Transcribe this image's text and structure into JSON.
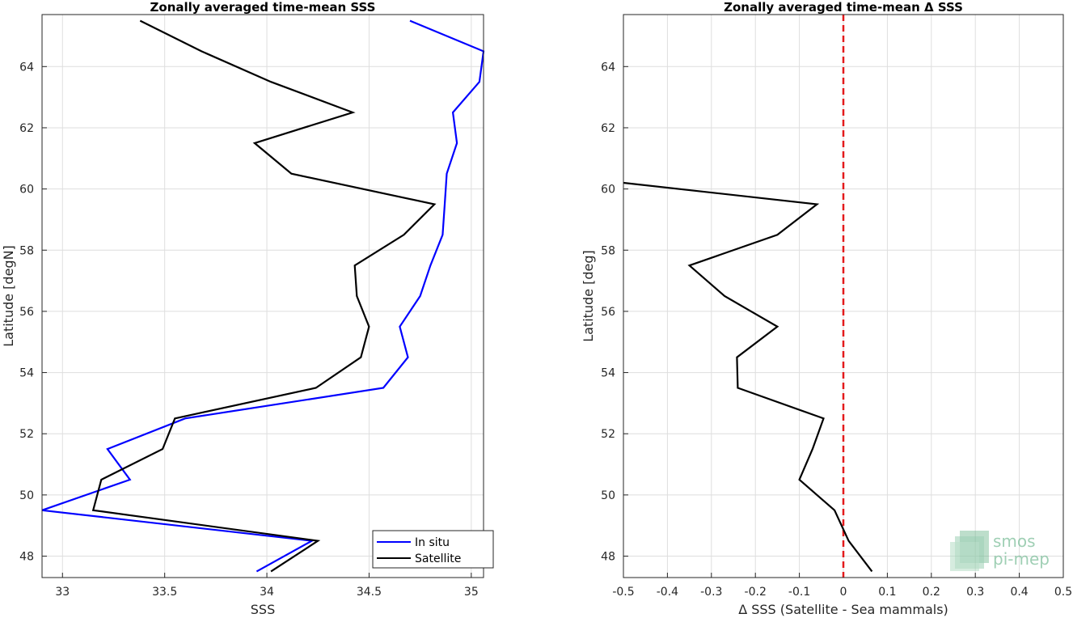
{
  "chart_data": [
    {
      "type": "line",
      "title": "Zonally averaged time-mean SSS",
      "xlabel": "SSS",
      "ylabel": "Latitude [degN]",
      "xlim": [
        32.9,
        35.06
      ],
      "ylim": [
        47.3,
        65.7
      ],
      "xticks": [
        33,
        33.5,
        34,
        34.5,
        35
      ],
      "xtick_labels": [
        "33",
        "33.5",
        "34",
        "34.5",
        "35"
      ],
      "yticks": [
        48,
        50,
        52,
        54,
        56,
        58,
        60,
        62,
        64
      ],
      "ytick_labels": [
        "48",
        "50",
        "52",
        "54",
        "56",
        "58",
        "60",
        "62",
        "64"
      ],
      "grid": true,
      "legend_position": "bottom-right",
      "series": [
        {
          "name": "In situ",
          "color": "#0000ff",
          "points": [
            [
              33.95,
              47.5
            ],
            [
              34.22,
              48.5
            ],
            [
              32.9,
              49.5
            ],
            [
              33.33,
              50.5
            ],
            [
              33.22,
              51.5
            ],
            [
              33.6,
              52.5
            ],
            [
              34.57,
              53.5
            ],
            [
              34.69,
              54.5
            ],
            [
              34.65,
              55.5
            ],
            [
              34.75,
              56.5
            ],
            [
              34.8,
              57.5
            ],
            [
              34.86,
              58.5
            ],
            [
              34.87,
              59.5
            ],
            [
              34.88,
              60.5
            ],
            [
              34.93,
              61.5
            ],
            [
              34.91,
              62.5
            ],
            [
              35.04,
              63.5
            ],
            [
              35.06,
              64.5
            ],
            [
              34.7,
              65.5
            ]
          ]
        },
        {
          "name": "Satellite",
          "color": "#000000",
          "points": [
            [
              34.02,
              47.5
            ],
            [
              34.25,
              48.5
            ],
            [
              33.15,
              49.5
            ],
            [
              33.19,
              50.5
            ],
            [
              33.49,
              51.5
            ],
            [
              33.55,
              52.5
            ],
            [
              34.24,
              53.5
            ],
            [
              34.46,
              54.5
            ],
            [
              34.5,
              55.5
            ],
            [
              34.44,
              56.5
            ],
            [
              34.43,
              57.5
            ],
            [
              34.67,
              58.5
            ],
            [
              34.82,
              59.5
            ],
            [
              34.12,
              60.5
            ],
            [
              33.94,
              61.5
            ],
            [
              34.42,
              62.5
            ],
            [
              34.02,
              63.5
            ],
            [
              33.68,
              64.5
            ],
            [
              33.38,
              65.5
            ]
          ]
        }
      ]
    },
    {
      "type": "line",
      "title": "Zonally averaged time-mean Δ SSS",
      "xlabel": "Δ SSS (Satellite - Sea mammals)",
      "ylabel": "Latitude [deg]",
      "xlim": [
        -0.5,
        0.5
      ],
      "ylim": [
        47.3,
        65.7
      ],
      "xticks": [
        -0.5,
        -0.4,
        -0.3,
        -0.2,
        -0.1,
        0,
        0.1,
        0.2,
        0.3,
        0.4,
        0.5
      ],
      "xtick_labels": [
        "-0.5",
        "-0.4",
        "-0.3",
        "-0.2",
        "-0.1",
        "0",
        "0.1",
        "0.2",
        "0.3",
        "0.4",
        "0.5"
      ],
      "yticks": [
        48,
        50,
        52,
        54,
        56,
        58,
        60,
        62,
        64
      ],
      "ytick_labels": [
        "48",
        "50",
        "52",
        "54",
        "56",
        "58",
        "60",
        "62",
        "64"
      ],
      "grid": true,
      "reference_line": {
        "x": 0,
        "color": "#e31a1c",
        "style": "dashed"
      },
      "series": [
        {
          "color": "#000000",
          "points": [
            [
              0.065,
              47.5
            ],
            [
              0.012,
              48.5
            ],
            [
              -0.02,
              49.5
            ],
            [
              -0.1,
              50.5
            ],
            [
              -0.07,
              51.5
            ],
            [
              -0.045,
              52.5
            ],
            [
              -0.24,
              53.5
            ],
            [
              -0.242,
              54.5
            ],
            [
              -0.15,
              55.5
            ],
            [
              -0.27,
              56.5
            ],
            [
              -0.35,
              57.5
            ],
            [
              -0.15,
              58.5
            ],
            [
              -0.06,
              59.5
            ],
            [
              -0.5,
              60.2
            ]
          ]
        }
      ]
    }
  ],
  "watermark": {
    "line1": "smos",
    "line2": "pi-mep",
    "color": "#8cc5a4"
  }
}
